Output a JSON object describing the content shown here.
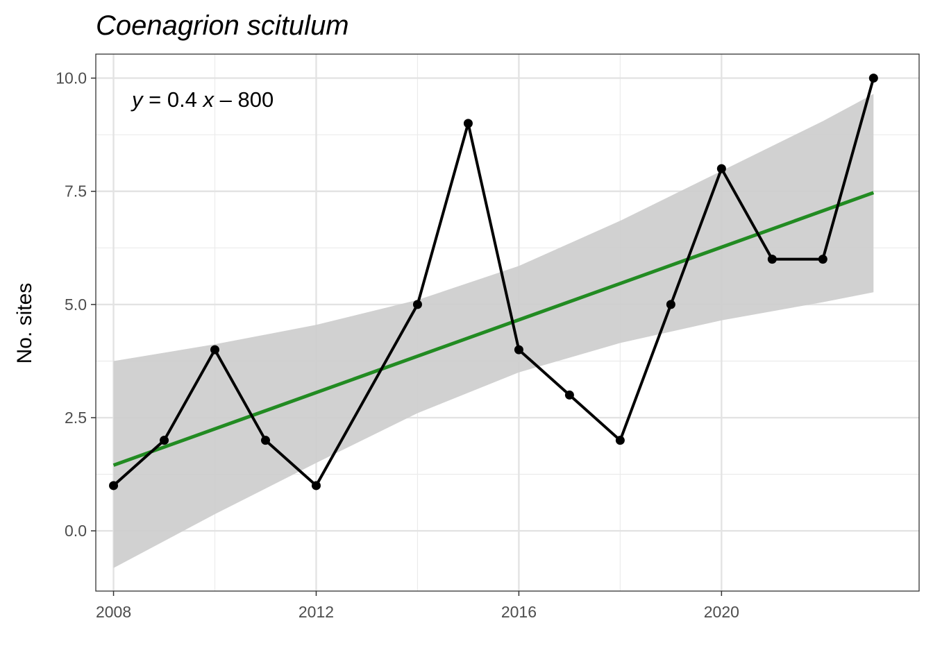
{
  "chart_data": {
    "type": "line",
    "title": "Coenagrion scitulum",
    "xlabel": "",
    "ylabel": "No. sites",
    "xlim": [
      2007.65,
      2023.9
    ],
    "ylim": [
      -1.33,
      10.53
    ],
    "x_ticks": [
      2008,
      2012,
      2016,
      2020
    ],
    "x_tick_labels": [
      "2008",
      "2012",
      "2016",
      "2020"
    ],
    "y_ticks": [
      0,
      2.5,
      5,
      7.5,
      10
    ],
    "y_tick_labels": [
      "0.0",
      "2.5",
      "5.0",
      "7.5",
      "10.0"
    ],
    "grid": true,
    "series": [
      {
        "x": [
          2008,
          2009,
          2010,
          2011,
          2012,
          2014,
          2015,
          2016,
          2017,
          2018,
          2019,
          2020,
          2021,
          2022,
          2023
        ],
        "y": [
          1,
          2,
          4,
          2,
          1,
          5,
          9,
          4,
          3,
          2,
          5,
          8,
          6,
          6,
          10
        ],
        "color": "#000000"
      }
    ],
    "trend": {
      "equation_prefix": "y",
      "equation_rest": " = 0.4 ",
      "equation_var": "x",
      "equation_tail": " – 800",
      "x": [
        2008,
        2023
      ],
      "y": [
        1.45,
        7.47
      ],
      "color": "#228b22",
      "band_x": [
        2008,
        2010,
        2012,
        2014,
        2016,
        2018,
        2020,
        2022,
        2023
      ],
      "band_lower": [
        -0.82,
        0.37,
        1.5,
        2.6,
        3.5,
        4.15,
        4.65,
        5.05,
        5.27
      ],
      "band_upper": [
        3.75,
        4.12,
        4.55,
        5.1,
        5.85,
        6.85,
        7.95,
        9.05,
        9.65
      ],
      "band_color": "#cccccc"
    }
  }
}
